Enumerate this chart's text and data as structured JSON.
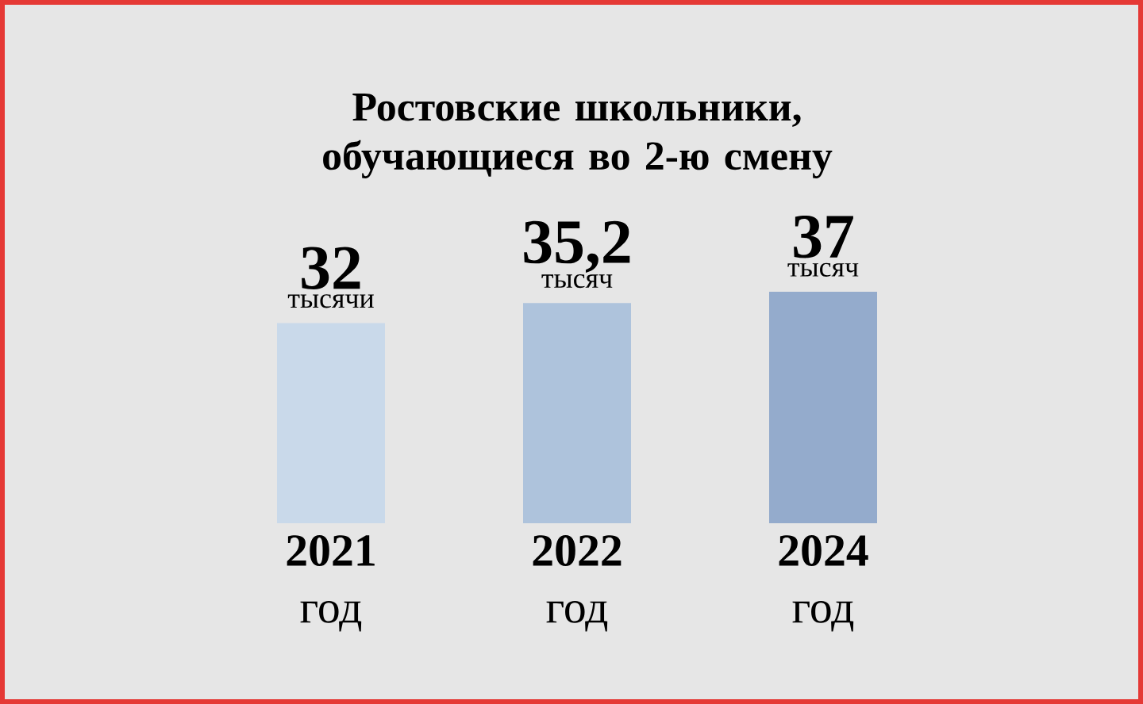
{
  "chart_data": {
    "type": "bar",
    "title": "Ростовские школьники, обучающиеся во 2-ю смену",
    "categories": [
      "**2021** год",
      "**2022** год",
      "**2024** год"
    ],
    "values": [
      32,
      35.2,
      37
    ],
    "colors": [
      "#c9d9ea",
      "#aec3dc",
      "#94abcc"
    ],
    "value_labels": [
      "32",
      "35,2",
      "37"
    ],
    "annotations": [
      "тысячи",
      "тысяч",
      "тысяч"
    ]
  }
}
